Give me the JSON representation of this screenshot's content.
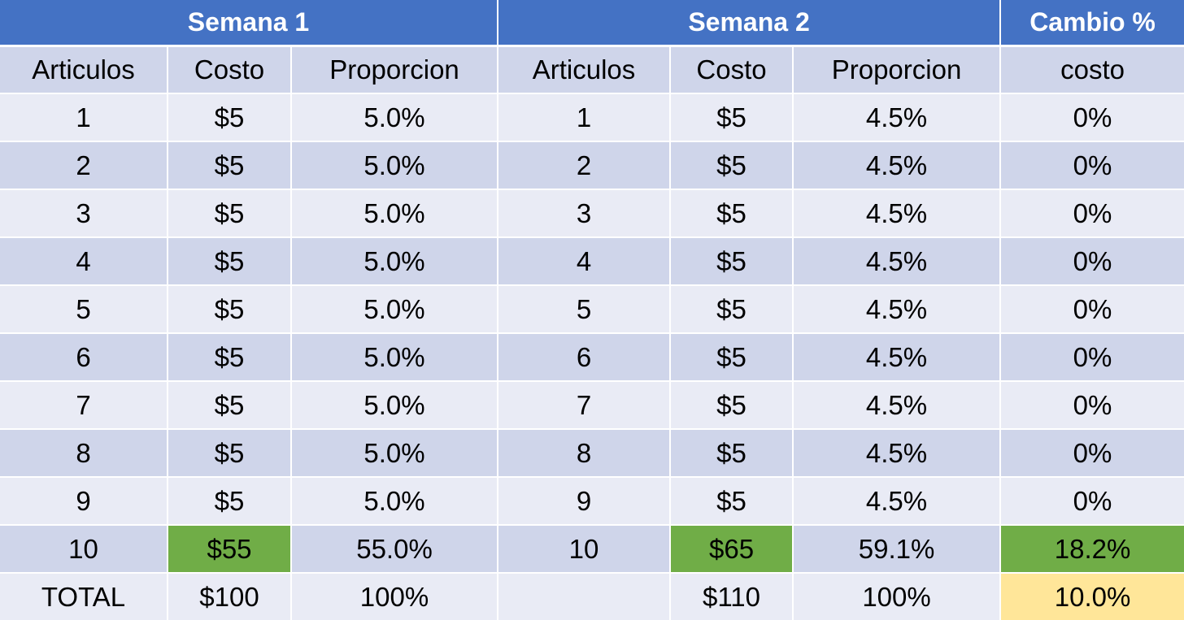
{
  "header": {
    "week1": "Semana 1",
    "week2": "Semana 2",
    "change": "Cambio %"
  },
  "subheader": {
    "w1_items": "Articulos",
    "w1_cost": "Costo",
    "w1_prop": "Proporcion",
    "w2_items": "Articulos",
    "w2_cost": "Costo",
    "w2_prop": "Proporcion",
    "change": "costo"
  },
  "rows": [
    [
      "1",
      "$5",
      "5.0%",
      "1",
      "$5",
      "4.5%",
      "0%"
    ],
    [
      "2",
      "$5",
      "5.0%",
      "2",
      "$5",
      "4.5%",
      "0%"
    ],
    [
      "3",
      "$5",
      "5.0%",
      "3",
      "$5",
      "4.5%",
      "0%"
    ],
    [
      "4",
      "$5",
      "5.0%",
      "4",
      "$5",
      "4.5%",
      "0%"
    ],
    [
      "5",
      "$5",
      "5.0%",
      "5",
      "$5",
      "4.5%",
      "0%"
    ],
    [
      "6",
      "$5",
      "5.0%",
      "6",
      "$5",
      "4.5%",
      "0%"
    ],
    [
      "7",
      "$5",
      "5.0%",
      "7",
      "$5",
      "4.5%",
      "0%"
    ],
    [
      "8",
      "$5",
      "5.0%",
      "8",
      "$5",
      "4.5%",
      "0%"
    ],
    [
      "9",
      "$5",
      "5.0%",
      "9",
      "$5",
      "4.5%",
      "0%"
    ],
    [
      "10",
      "$55",
      "55.0%",
      "10",
      "$65",
      "59.1%",
      "18.2%"
    ]
  ],
  "total": [
    "TOTAL",
    "$100",
    "100%",
    "",
    "$110",
    "100%",
    "10.0%"
  ],
  "colors": {
    "header_blue": "#4472c4",
    "band_dark": "#cfd5ea",
    "band_light": "#e9ebf5",
    "highlight_green": "#70ad47",
    "highlight_yellow": "#ffe699"
  }
}
